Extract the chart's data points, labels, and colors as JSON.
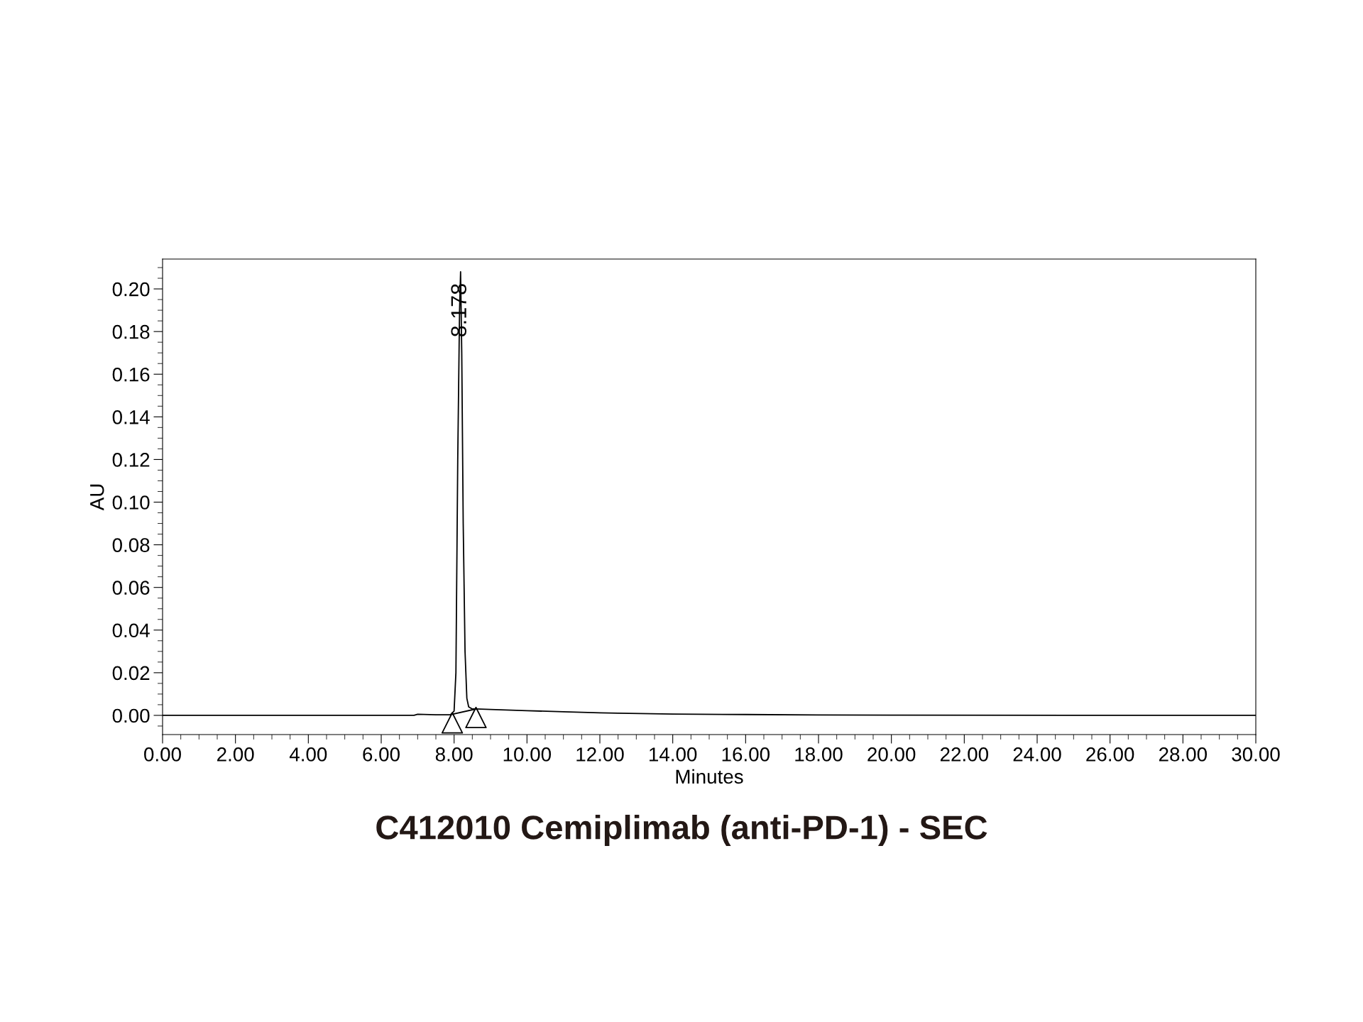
{
  "chart_data": {
    "type": "line",
    "title": "C412010 Cemiplimab (anti-PD-1) - SEC",
    "xlabel": "Minutes",
    "ylabel": "AU",
    "series": [
      {
        "color": "#000000",
        "x": [
          0,
          6.9,
          7.0,
          7.5,
          7.9,
          8.0,
          8.05,
          8.1,
          8.15,
          8.178,
          8.21,
          8.25,
          8.3,
          8.35,
          8.4,
          8.5,
          8.6,
          9,
          10,
          11,
          12,
          12.5,
          14,
          16,
          18,
          20,
          25,
          30
        ],
        "values": [
          0,
          0,
          0.0005,
          0.0003,
          0.0003,
          0.002,
          0.02,
          0.12,
          0.19,
          0.208,
          0.17,
          0.09,
          0.03,
          0.008,
          0.004,
          0.003,
          0.003,
          0.0028,
          0.0022,
          0.0017,
          0.0012,
          0.001,
          0.0006,
          0.0004,
          0.0002,
          0.0001,
          0,
          0
        ]
      },
      {
        "color": "#000000",
        "x": [
          7.95,
          8.6
        ],
        "values": [
          0.0005,
          0.003
        ]
      },
      {
        "type": "scatter",
        "color": "#000000",
        "marker": "triangle",
        "x": [
          7.95,
          8.6
        ],
        "values": [
          -0.0035,
          -0.001
        ]
      }
    ],
    "xlim": [
      0,
      30
    ],
    "xticks": [
      {
        "value": 0,
        "label": "0.00"
      },
      {
        "value": 2,
        "label": "2.00"
      },
      {
        "value": 4,
        "label": "4.00"
      },
      {
        "value": 6,
        "label": "6.00"
      },
      {
        "value": 8,
        "label": "8.00"
      },
      {
        "value": 10,
        "label": "10.00"
      },
      {
        "value": 12,
        "label": "12.00"
      },
      {
        "value": 14,
        "label": "14.00"
      },
      {
        "value": 16,
        "label": "16.00"
      },
      {
        "value": 18,
        "label": "18.00"
      },
      {
        "value": 20,
        "label": "20.00"
      },
      {
        "value": 22,
        "label": "22.00"
      },
      {
        "value": 24,
        "label": "24.00"
      },
      {
        "value": 26,
        "label": "26.00"
      },
      {
        "value": 28,
        "label": "28.00"
      },
      {
        "value": 30,
        "label": "30.00"
      }
    ],
    "ylim": [
      -0.009,
      0.214
    ],
    "yticks": [
      {
        "value": 0,
        "label": "0.00"
      },
      {
        "value": 0.02,
        "label": "0.02"
      },
      {
        "value": 0.04,
        "label": "0.04"
      },
      {
        "value": 0.06,
        "label": "0.06"
      },
      {
        "value": 0.08,
        "label": "0.08"
      },
      {
        "value": 0.1,
        "label": "0.10"
      },
      {
        "value": 0.12,
        "label": "0.12"
      },
      {
        "value": 0.14,
        "label": "0.14"
      },
      {
        "value": 0.16,
        "label": "0.16"
      },
      {
        "value": 0.18,
        "label": "0.18"
      },
      {
        "value": 0.2,
        "label": "0.20"
      }
    ],
    "annotations": [
      {
        "text": "8.178",
        "x": 8.178,
        "y": 0.19
      }
    ],
    "grid": false,
    "legend": false
  }
}
